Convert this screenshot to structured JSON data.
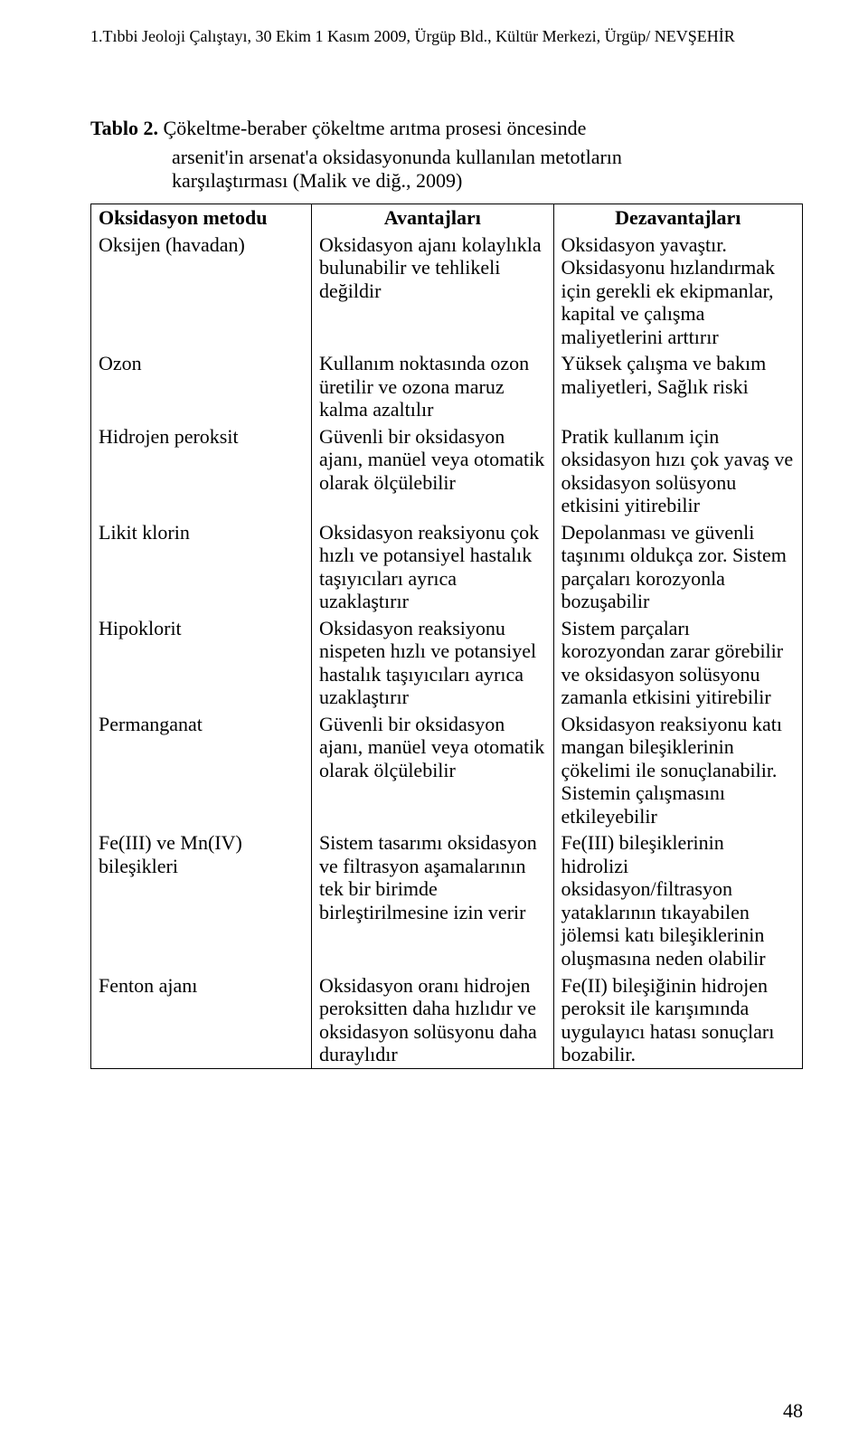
{
  "header_line": "1.Tıbbi Jeoloji Çalıştayı, 30 Ekim 1 Kasım 2009, Ürgüp Bld., Kültür Merkezi, Ürgüp/ NEVŞEHİR",
  "caption_label": "Tablo 2.",
  "caption_line1_rest": " Çökeltme-beraber çökeltme arıtma prosesi öncesinde",
  "caption_line2": "arsenit'in arsenat'a oksidasyonunda kullanılan metotların",
  "caption_line3": "karşılaştırması (Malik ve diğ., 2009)",
  "columns": {
    "c1": "Oksidasyon metodu",
    "c2": "Avantajları",
    "c3": "Dezavantajları"
  },
  "rows": [
    {
      "c1": "Oksijen (havadan)",
      "c2": "Oksidasyon ajanı kolaylıkla bulunabilir ve tehlikeli değildir",
      "c3": "Oksidasyon yavaştır. Oksidasyonu hızlandırmak için gerekli ek ekipmanlar, kapital ve çalışma maliyetlerini arttırır"
    },
    {
      "c1": "Ozon",
      "c2": "Kullanım noktasında ozon üretilir ve ozona maruz kalma azaltılır",
      "c3": "Yüksek çalışma ve bakım maliyetleri, Sağlık riski"
    },
    {
      "c1": "Hidrojen peroksit",
      "c2": "Güvenli bir oksidasyon ajanı, manüel veya otomatik olarak ölçülebilir",
      "c3": "Pratik kullanım için oksidasyon hızı çok yavaş ve oksidasyon solüsyonu etkisini yitirebilir"
    },
    {
      "c1": "Likit klorin",
      "c2": "Oksidasyon reaksiyonu çok hızlı ve potansiyel hastalık taşıyıcıları ayrıca uzaklaştırır",
      "c3": "Depolanması ve güvenli taşınımı oldukça zor. Sistem parçaları korozyonla bozuşabilir"
    },
    {
      "c1": "Hipoklorit",
      "c2": "Oksidasyon reaksiyonu nispeten hızlı ve potansiyel hastalık taşıyıcıları ayrıca uzaklaştırır",
      "c3": "Sistem parçaları korozyondan zarar görebilir ve oksidasyon solüsyonu zamanla etkisini yitirebilir"
    },
    {
      "c1": "Permanganat",
      "c2": "Güvenli bir oksidasyon ajanı, manüel veya otomatik olarak ölçülebilir",
      "c3": "Oksidasyon reaksiyonu katı mangan bileşiklerinin çökelimi ile sonuçlanabilir. Sistemin çalışmasını etkileyebilir"
    },
    {
      "c1": "Fe(III) ve Mn(IV) bileşikleri",
      "c2": "Sistem tasarımı oksidasyon ve filtrasyon aşamalarının tek bir birimde birleştirilmesine izin verir",
      "c3": "Fe(III) bileşiklerinin hidrolizi oksidasyon/filtrasyon yataklarının tıkayabilen jölemsi katı bileşiklerinin oluşmasına neden olabilir"
    },
    {
      "c1": "Fenton ajanı",
      "c2": "Oksidasyon oranı hidrojen peroksitten daha hızlıdır ve oksidasyon solüsyonu daha duraylıdır",
      "c3": "Fe(II) bileşiğinin hidrojen peroksit ile karışımında uygulayıcı hatası sonuçları bozabilir."
    }
  ],
  "page_number": "48"
}
